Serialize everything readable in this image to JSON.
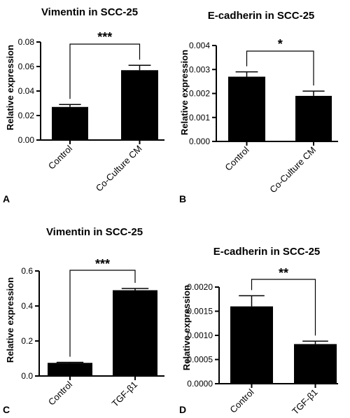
{
  "chart_data": [
    {
      "panel": "A",
      "type": "bar",
      "title": "Vimentin in SCC-25",
      "xlabel": "",
      "ylabel": "Relative expression",
      "categories": [
        "Control",
        "Co-Culture CM"
      ],
      "values": [
        0.027,
        0.057
      ],
      "errors": [
        0.002,
        0.004
      ],
      "ylim": [
        0,
        0.08
      ],
      "yticks": [
        "0.00",
        "0.02",
        "0.04",
        "0.06",
        "0.08"
      ],
      "significance": "***"
    },
    {
      "panel": "B",
      "type": "bar",
      "title": "E-cadherin in SCC-25",
      "xlabel": "",
      "ylabel": "Relative expression",
      "categories": [
        "Control",
        "Co-Culture CM"
      ],
      "values": [
        0.0027,
        0.0019
      ],
      "errors": [
        0.0002,
        0.0002
      ],
      "ylim": [
        0,
        0.004
      ],
      "yticks": [
        "0.000",
        "0.001",
        "0.002",
        "0.003",
        "0.004"
      ],
      "significance": "*"
    },
    {
      "panel": "C",
      "type": "bar",
      "title": "Vimentin in SCC-25",
      "xlabel": "",
      "ylabel": "Relative expression",
      "categories": [
        "Control",
        "TGF-β1"
      ],
      "values": [
        0.075,
        0.49
      ],
      "errors": [
        0.003,
        0.01
      ],
      "ylim": [
        0,
        0.6
      ],
      "yticks": [
        "0.0",
        "0.2",
        "0.4",
        "0.6"
      ],
      "significance": "***"
    },
    {
      "panel": "D",
      "type": "bar",
      "title": "E-cadherin in SCC-25",
      "xlabel": "",
      "ylabel": "Relative expression",
      "categories": [
        "Control",
        "TGF-β1"
      ],
      "values": [
        0.0016,
        0.00082
      ],
      "errors": [
        0.00022,
        6e-05
      ],
      "ylim": [
        0,
        0.002
      ],
      "yticks": [
        "0.0000",
        "0.0005",
        "0.0010",
        "0.0015",
        "0.0020"
      ],
      "significance": "**"
    }
  ]
}
